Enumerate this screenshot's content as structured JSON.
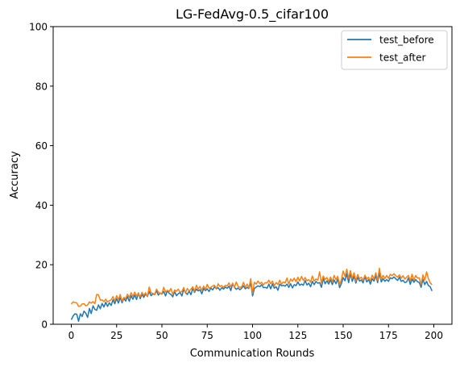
{
  "chart_data": {
    "type": "line",
    "title": "LG-FedAvg-0.5_cifar100",
    "xlabel": "Communication Rounds",
    "ylabel": "Accuracy",
    "xlim": [
      -10,
      210
    ],
    "ylim": [
      0,
      100
    ],
    "xticks": [
      0,
      25,
      50,
      75,
      100,
      125,
      150,
      175,
      200
    ],
    "yticks": [
      0,
      20,
      40,
      60,
      80,
      100
    ],
    "grid": false,
    "legend_position": "top-right",
    "x_start": 0,
    "x_step": 1,
    "series": [
      {
        "name": "test_before",
        "color": "#1f77b4",
        "values": [
          1.5,
          2.8,
          3.5,
          3.4,
          1.0,
          3.5,
          2.6,
          4.4,
          3.7,
          2.3,
          5.3,
          3.6,
          6.2,
          5.0,
          4.7,
          6.5,
          5.2,
          7.0,
          5.8,
          7.4,
          6.0,
          7.2,
          6.3,
          8.2,
          6.9,
          8.6,
          7.1,
          8.9,
          7.2,
          8.7,
          7.8,
          9.3,
          7.7,
          9.6,
          8.4,
          9.8,
          8.3,
          10.5,
          8.6,
          10.0,
          9.0,
          10.2,
          9.3,
          11.0,
          9.6,
          10.2,
          9.9,
          11.3,
          9.8,
          10.5,
          10.1,
          11.0,
          9.5,
          11.3,
          10.4,
          10.0,
          9.2,
          11.0,
          9.6,
          10.2,
          10.7,
          9.5,
          11.7,
          10.6,
          10.0,
          11.2,
          9.9,
          12.0,
          10.7,
          11.8,
          11.2,
          11.6,
          10.2,
          12.0,
          11.3,
          11.9,
          11.0,
          12.2,
          11.5,
          12.6,
          11.9,
          12.3,
          11.4,
          12.3,
          11.8,
          12.5,
          12.1,
          12.8,
          11.3,
          13.6,
          12.5,
          11.7,
          12.2,
          11.6,
          12.1,
          12.9,
          11.9,
          12.4,
          12.0,
          14.0,
          9.5,
          12.0,
          12.5,
          12.9,
          12.6,
          13.3,
          12.3,
          12.4,
          12.1,
          13.5,
          11.9,
          13.6,
          12.1,
          12.6,
          11.4,
          13.5,
          12.9,
          13.1,
          12.8,
          13.5,
          12.4,
          13.6,
          12.2,
          13.3,
          13.0,
          14.2,
          13.1,
          13.5,
          13.1,
          14.7,
          13.2,
          13.8,
          12.6,
          14.4,
          13.3,
          14.4,
          13.8,
          14.0,
          12.4,
          15.4,
          13.6,
          14.6,
          13.5,
          14.9,
          13.3,
          14.9,
          13.6,
          15.2,
          12.3,
          13.6,
          15.7,
          14.6,
          17.0,
          14.0,
          17.1,
          14.4,
          16.1,
          13.8,
          15.8,
          14.5,
          14.9,
          13.9,
          16.1,
          14.2,
          15.0,
          13.5,
          15.3,
          14.5,
          16.3,
          14.0,
          17.2,
          14.2,
          15.3,
          14.4,
          15.0,
          14.4,
          15.6,
          15.3,
          15.9,
          15.3,
          14.7,
          15.8,
          14.4,
          14.8,
          14.0,
          14.2,
          15.6,
          13.4,
          15.2,
          14.1,
          15.0,
          14.3,
          14.0,
          12.4,
          15.1,
          13.3,
          14.4,
          13.0,
          12.6,
          11.2
        ]
      },
      {
        "name": "test_after",
        "color": "#ff7f0e",
        "values": [
          6.8,
          7.5,
          7.3,
          7.2,
          6.0,
          6.1,
          6.8,
          6.9,
          6.2,
          6.5,
          7.5,
          7.1,
          7.6,
          6.9,
          10.0,
          9.9,
          8.1,
          8.2,
          7.6,
          8.4,
          7.5,
          7.9,
          8.2,
          9.3,
          7.8,
          9.6,
          8.3,
          10.0,
          7.7,
          9.0,
          8.6,
          10.1,
          9.0,
          10.6,
          9.4,
          10.8,
          9.5,
          10.3,
          9.2,
          10.7,
          9.7,
          10.6,
          9.3,
          12.5,
          10.5,
          10.4,
          10.0,
          11.8,
          10.8,
          10.4,
          10.2,
          12.4,
          10.8,
          11.4,
          11.0,
          12.0,
          10.0,
          11.5,
          11.1,
          11.8,
          10.8,
          11.0,
          12.3,
          10.5,
          12.0,
          11.2,
          11.7,
          12.6,
          11.0,
          13.1,
          11.8,
          12.7,
          11.4,
          12.8,
          11.7,
          13.4,
          12.1,
          12.4,
          12.9,
          13.1,
          11.9,
          13.6,
          12.7,
          13.0,
          12.3,
          13.1,
          12.9,
          13.9,
          12.6,
          13.8,
          12.3,
          14.2,
          12.7,
          12.4,
          12.5,
          14.1,
          12.4,
          13.5,
          12.2,
          15.3,
          10.4,
          14.1,
          13.5,
          14.5,
          13.6,
          14.1,
          13.2,
          14.0,
          13.9,
          14.8,
          13.6,
          14.5,
          12.9,
          14.0,
          13.4,
          14.8,
          13.5,
          14.2,
          13.9,
          15.5,
          13.5,
          15.2,
          14.5,
          15.5,
          14.3,
          15.8,
          14.5,
          16.1,
          14.7,
          15.7,
          14.6,
          15.0,
          14.1,
          16.2,
          14.5,
          15.2,
          14.8,
          17.6,
          13.7,
          16.2,
          15.0,
          15.7,
          14.3,
          15.8,
          14.4,
          16.4,
          15.0,
          16.1,
          13.3,
          15.0,
          17.9,
          16.0,
          18.5,
          15.4,
          18.0,
          15.3,
          17.3,
          14.5,
          16.7,
          15.3,
          15.8,
          14.7,
          16.5,
          15.2,
          15.8,
          14.5,
          16.5,
          15.2,
          17.3,
          14.8,
          18.8,
          15.1,
          16.4,
          15.3,
          16.4,
          15.4,
          16.8,
          16.3,
          17.0,
          16.3,
          15.8,
          16.6,
          15.5,
          16.3,
          15.2,
          15.8,
          16.4,
          14.6,
          16.8,
          14.8,
          16.4,
          15.5,
          15.5,
          13.3,
          16.6,
          14.8,
          17.6,
          15.3,
          13.9,
          13.3
        ]
      }
    ]
  }
}
